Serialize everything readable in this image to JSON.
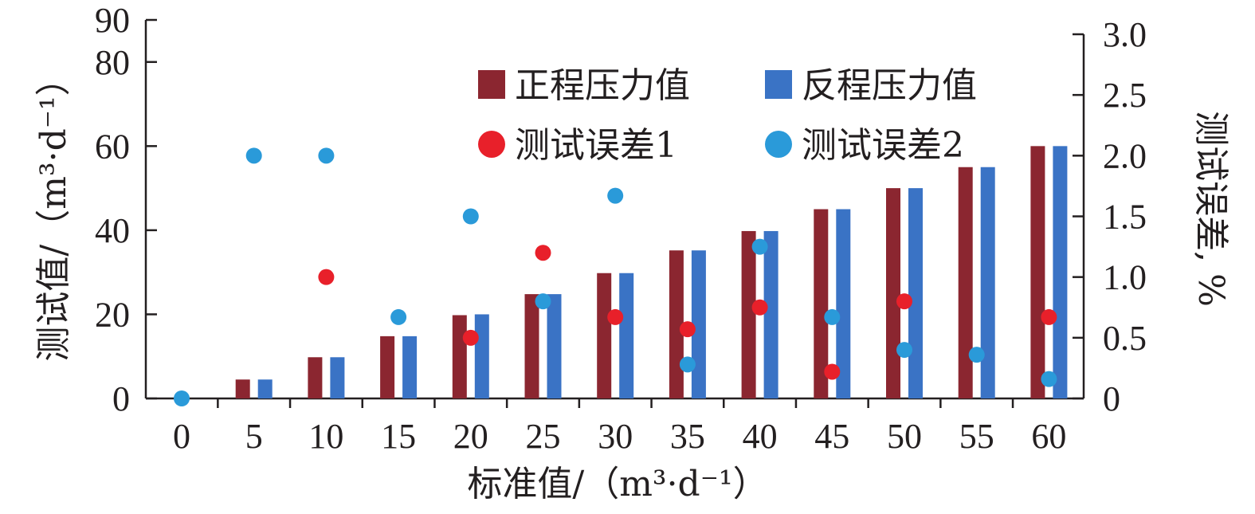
{
  "chart_data": {
    "type": "bar",
    "categories": [
      "0",
      "5",
      "10",
      "15",
      "20",
      "25",
      "30",
      "35",
      "40",
      "45",
      "50",
      "55",
      "60"
    ],
    "series": [
      {
        "name": "正程压力值",
        "kind": "bar",
        "axis": "left",
        "color": "#8b2630",
        "values": [
          0,
          4.5,
          9.8,
          14.8,
          19.8,
          24.8,
          29.8,
          35.2,
          39.8,
          45,
          50,
          55,
          60
        ]
      },
      {
        "name": "反程压力值",
        "kind": "bar",
        "axis": "left",
        "color": "#3a73c5",
        "values": [
          0,
          4.5,
          9.8,
          14.8,
          20,
          24.8,
          29.8,
          35.2,
          39.8,
          45,
          50,
          55,
          60
        ]
      },
      {
        "name": "测试误差1",
        "kind": "scatter",
        "axis": "right",
        "color": "#e8202a",
        "values": [
          null,
          null,
          1.0,
          null,
          0.5,
          1.2,
          0.67,
          0.57,
          0.75,
          0.22,
          0.8,
          null,
          0.67
        ]
      },
      {
        "name": "测试误差2",
        "kind": "scatter",
        "axis": "right",
        "color": "#2a9ad9",
        "values": [
          0,
          2.0,
          2.0,
          0.67,
          1.5,
          0.8,
          1.67,
          0.28,
          1.25,
          0.67,
          0.4,
          0.36,
          0.16
        ]
      }
    ],
    "xlabel": "标准值/（m³·d⁻¹）",
    "ylabel": "测试值/（m³·d⁻¹）",
    "y2label": "测试误差, %",
    "ylim": [
      0,
      90
    ],
    "y2lim": [
      0,
      3.0
    ],
    "yticks": [
      "0",
      "20",
      "40",
      "60",
      "80",
      "90"
    ],
    "y2ticks": [
      "0",
      "0.5",
      "1.0",
      "1.5",
      "2.0",
      "2.5",
      "3.0"
    ],
    "grid": false,
    "legend_position": "top-right"
  }
}
